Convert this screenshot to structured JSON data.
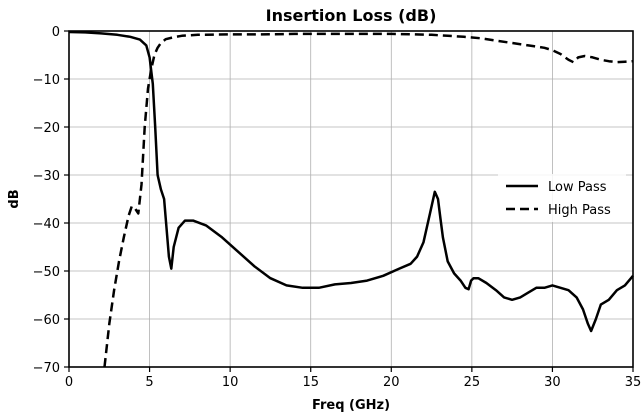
{
  "chart_data": {
    "type": "line",
    "title": "Insertion Loss (dB)",
    "xlabel": "Freq (GHz)",
    "ylabel": "dB",
    "xlim": [
      0,
      35
    ],
    "ylim": [
      -70,
      0
    ],
    "xticks": [
      0,
      5,
      10,
      15,
      20,
      25,
      30,
      35
    ],
    "yticks": [
      0,
      -10,
      -20,
      -30,
      -40,
      -50,
      -60,
      -70
    ],
    "xtick_labels": [
      "0",
      "5",
      "10",
      "15",
      "20",
      "25",
      "30",
      "35"
    ],
    "ytick_labels": [
      "0",
      "−10",
      "−20",
      "−30",
      "−40",
      "−50",
      "−60",
      "−70"
    ],
    "grid": true,
    "legend_position": "center-right",
    "series": [
      {
        "name": "Low Pass",
        "style": "solid",
        "color": "#000000",
        "x": [
          0,
          1,
          2,
          3,
          3.8,
          4.4,
          4.8,
          5.0,
          5.2,
          5.35,
          5.5,
          5.7,
          5.9,
          6.05,
          6.2,
          6.35,
          6.5,
          6.8,
          7.2,
          7.7,
          8.5,
          9.5,
          10.5,
          11.5,
          12.5,
          13.5,
          14.5,
          15.5,
          16.5,
          17.5,
          18.5,
          19.5,
          20.5,
          21.2,
          21.6,
          22.0,
          22.4,
          22.7,
          22.9,
          23.05,
          23.2,
          23.5,
          23.9,
          24.3,
          24.6,
          24.8,
          24.95,
          25.1,
          25.4,
          25.9,
          26.5,
          27.0,
          27.5,
          28.0,
          28.5,
          29.0,
          29.5,
          30.0,
          30.5,
          31.0,
          31.5,
          31.9,
          32.2,
          32.4,
          32.7,
          33.0,
          33.5,
          34.0,
          34.5,
          35.0
        ],
        "y": [
          -0.2,
          -0.3,
          -0.5,
          -0.8,
          -1.2,
          -1.8,
          -3.0,
          -5.5,
          -11,
          -20,
          -30,
          -33,
          -35,
          -41,
          -47,
          -49.5,
          -45,
          -41,
          -39.5,
          -39.5,
          -40.5,
          -43,
          -46,
          -49,
          -51.5,
          -53,
          -53.5,
          -53.5,
          -52.8,
          -52.5,
          -52,
          -51,
          -49.5,
          -48.5,
          -47,
          -44,
          -38,
          -33.5,
          -35,
          -39,
          -43,
          -48,
          -50.5,
          -52,
          -53.5,
          -53.8,
          -52,
          -51.5,
          -51.5,
          -52.5,
          -54,
          -55.5,
          -56,
          -55.5,
          -54.5,
          -53.5,
          -53.5,
          -53,
          -53.5,
          -54,
          -55.5,
          -58,
          -61,
          -62.5,
          -60,
          -57,
          -56,
          -54,
          -53,
          -51
        ]
      },
      {
        "name": "High Pass",
        "style": "dashed",
        "color": "#000000",
        "x": [
          2.2,
          2.5,
          2.8,
          3.1,
          3.4,
          3.7,
          3.9,
          4.1,
          4.3,
          4.5,
          4.7,
          4.9,
          5.1,
          5.3,
          5.5,
          5.7,
          6.0,
          6.5,
          7,
          8,
          10,
          12,
          14,
          16,
          18,
          20,
          21.5,
          22.5,
          23.5,
          24.5,
          25.5,
          26.5,
          27.5,
          28.5,
          29.5,
          30.0,
          30.5,
          31.0,
          31.3,
          31.6,
          32.0,
          32.5,
          33.0,
          33.5,
          34.0,
          34.5,
          35.0
        ],
        "y": [
          -70,
          -61,
          -54,
          -48,
          -43,
          -38.5,
          -36.5,
          -37,
          -38,
          -32,
          -20,
          -12,
          -8,
          -5,
          -3.5,
          -2.5,
          -1.7,
          -1.3,
          -1.0,
          -0.8,
          -0.7,
          -0.7,
          -0.6,
          -0.6,
          -0.6,
          -0.6,
          -0.7,
          -0.8,
          -1.0,
          -1.2,
          -1.5,
          -2.0,
          -2.5,
          -3.0,
          -3.5,
          -4.0,
          -4.8,
          -6.0,
          -6.5,
          -5.5,
          -5.2,
          -5.5,
          -6.0,
          -6.3,
          -6.5,
          -6.4,
          -6.3
        ]
      }
    ]
  }
}
